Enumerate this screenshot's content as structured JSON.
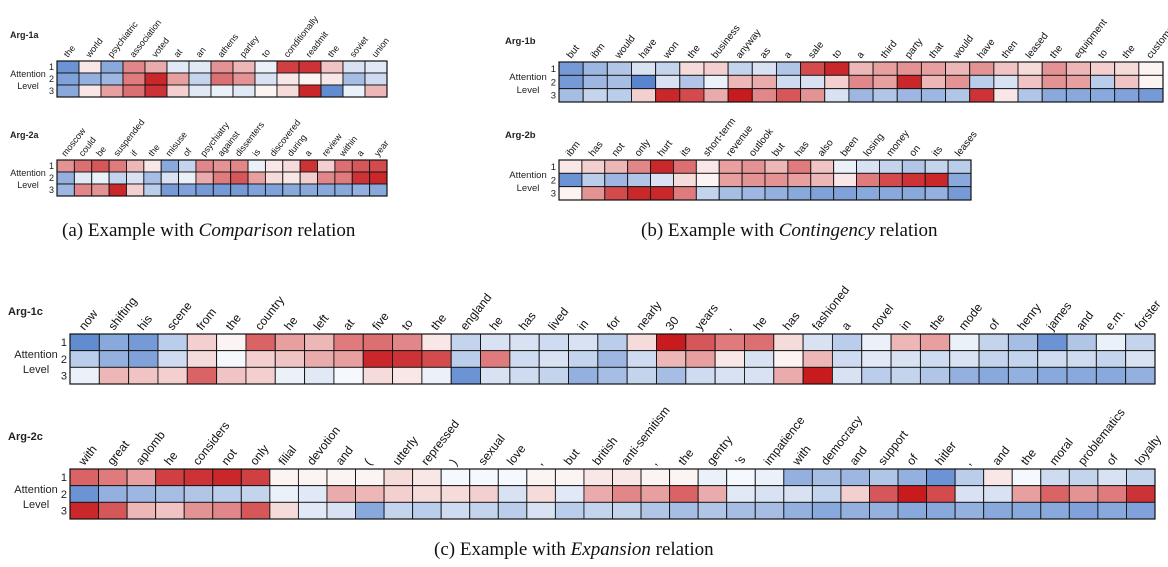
{
  "captions": {
    "a": {
      "prefix": "(a) Example with ",
      "relation": "Comparison",
      "suffix": " relation"
    },
    "b": {
      "prefix": "(b) Example with ",
      "relation": "Contingency",
      "suffix": " relation"
    },
    "c": {
      "prefix": "(c) Example with ",
      "relation": "Expansion",
      "suffix": " relation"
    }
  },
  "axis": {
    "title_line1": "Attention",
    "title_line2": "Level",
    "levels": [
      "1",
      "2",
      "3"
    ]
  },
  "colors": {
    "negative": "#3b6fc4",
    "neutral": "#ffffff",
    "positive": "#c40f12"
  },
  "chart_data": [
    {
      "type": "heatmap",
      "label": "Arg-1a",
      "words": [
        "the",
        "world",
        "psychiatric",
        "association",
        "voted",
        "at",
        "an",
        "athens",
        "parley",
        "to",
        "conditionally",
        "readmit",
        "the",
        "soviet",
        "union"
      ],
      "values": [
        [
          -0.75,
          0.1,
          -0.6,
          0.5,
          0.35,
          -0.15,
          -0.15,
          0.45,
          0.3,
          -0.1,
          0.8,
          0.85,
          0.25,
          -0.2,
          -0.15
        ],
        [
          -0.65,
          -0.55,
          -0.5,
          0.55,
          0.9,
          0.4,
          -0.3,
          0.6,
          0.45,
          -0.2,
          0.1,
          0.05,
          0.1,
          -0.45,
          -0.25
        ],
        [
          -0.6,
          0.1,
          0.4,
          0.6,
          0.85,
          0.2,
          -0.15,
          -0.1,
          -0.15,
          0.05,
          0.15,
          0.9,
          -0.8,
          -0.1,
          0.3
        ]
      ]
    },
    {
      "type": "heatmap",
      "label": "Arg-2a",
      "words": [
        "moscow",
        "could",
        "be",
        "suspended",
        "if",
        "the",
        "misuse",
        "of",
        "psychiatry",
        "against",
        "dissenters",
        "is",
        "discovered",
        "during",
        "a",
        "review",
        "within",
        "a",
        "year"
      ],
      "values": [
        [
          0.45,
          0.6,
          0.7,
          0.55,
          0.3,
          0.1,
          -0.6,
          -0.3,
          0.5,
          0.45,
          0.5,
          -0.1,
          0.1,
          0.15,
          0.85,
          0.2,
          0.6,
          0.7,
          0.75
        ],
        [
          -0.55,
          -0.15,
          -0.1,
          -0.3,
          -0.2,
          -0.45,
          -0.2,
          -0.1,
          0.35,
          0.55,
          0.7,
          0.4,
          0.15,
          0.1,
          0.2,
          0.5,
          0.55,
          0.85,
          0.9
        ],
        [
          -0.5,
          0.5,
          0.45,
          0.9,
          0.2,
          -0.35,
          -0.7,
          -0.65,
          -0.7,
          -0.7,
          -0.7,
          -0.65,
          -0.65,
          -0.6,
          -0.6,
          -0.6,
          -0.6,
          -0.55,
          -0.6
        ]
      ]
    },
    {
      "type": "heatmap",
      "label": "Arg-1b",
      "words": [
        "but",
        "ibm",
        "would",
        "have",
        "won",
        "the",
        "business",
        "anyway",
        "as",
        "a",
        "sale",
        "to",
        "a",
        "third",
        "party",
        "that",
        "would",
        "have",
        "then",
        "leased",
        "the",
        "equipment",
        "to",
        "the",
        "customer"
      ],
      "values": [
        [
          -0.7,
          -0.5,
          -0.4,
          -0.2,
          -0.3,
          0.15,
          0.2,
          -0.3,
          -0.2,
          -0.4,
          0.75,
          0.9,
          0.3,
          0.4,
          0.45,
          0.4,
          0.3,
          0.45,
          0.25,
          0.15,
          0.45,
          0.3,
          0.2,
          0.15,
          0.05
        ],
        [
          -0.7,
          -0.5,
          -0.45,
          -0.85,
          -0.2,
          -0.4,
          -0.1,
          0.3,
          0.35,
          -0.25,
          -0.2,
          0.2,
          0.5,
          0.4,
          0.9,
          0.3,
          0.45,
          -0.35,
          -0.2,
          0.25,
          0.45,
          0.4,
          -0.35,
          0.25,
          0.05
        ],
        [
          -0.45,
          -0.3,
          -0.35,
          0.2,
          0.9,
          0.75,
          0.35,
          0.95,
          0.5,
          0.7,
          0.45,
          -0.2,
          -0.5,
          -0.4,
          -0.5,
          -0.5,
          -0.4,
          0.85,
          0.1,
          -0.4,
          -0.6,
          -0.6,
          -0.6,
          -0.65,
          -0.7
        ]
      ]
    },
    {
      "type": "heatmap",
      "label": "Arg-2b",
      "words": [
        "ibm",
        "has",
        "not",
        "only",
        "hurt",
        "its",
        "short-term",
        "revenue",
        "outlook",
        "but",
        "has",
        "also",
        "been",
        "losing",
        "money",
        "on",
        "its",
        "leases"
      ],
      "values": [
        [
          0.1,
          0.2,
          0.3,
          0.5,
          0.9,
          0.6,
          0.1,
          0.4,
          0.45,
          0.3,
          0.55,
          0.25,
          -0.1,
          -0.2,
          -0.3,
          -0.4,
          -0.3,
          -0.35
        ],
        [
          -0.75,
          -0.35,
          -0.5,
          -0.4,
          -0.2,
          0.15,
          0.05,
          0.4,
          0.45,
          0.45,
          0.4,
          0.3,
          0.1,
          0.55,
          0.75,
          0.85,
          0.9,
          -0.6
        ],
        [
          0.05,
          0.45,
          0.75,
          0.9,
          0.9,
          0.55,
          -0.3,
          -0.45,
          -0.5,
          -0.55,
          -0.6,
          -0.65,
          -0.65,
          -0.6,
          -0.6,
          -0.6,
          -0.55,
          -0.7
        ]
      ]
    },
    {
      "type": "heatmap",
      "label": "Arg-1c",
      "words": [
        "now",
        "shifting",
        "his",
        "scene",
        "from",
        "the",
        "country",
        "he",
        "left",
        "at",
        "five",
        "to",
        "the",
        "england",
        "he",
        "has",
        "lived",
        "in",
        "for",
        "nearly",
        "30",
        "years",
        ",",
        "he",
        "has",
        "fashioned",
        "a",
        "novel",
        "in",
        "the",
        "mode",
        "of",
        "henry",
        "james",
        "and",
        "e.m.",
        "forster"
      ],
      "values": [
        [
          -0.8,
          -0.6,
          -0.7,
          -0.35,
          0.2,
          0.05,
          0.65,
          0.4,
          0.3,
          0.55,
          0.6,
          0.5,
          0.1,
          -0.3,
          -0.2,
          -0.2,
          -0.25,
          -0.2,
          -0.35,
          0.15,
          0.95,
          0.7,
          0.55,
          0.6,
          0.15,
          -0.2,
          -0.35,
          -0.1,
          0.3,
          0.4,
          -0.1,
          -0.3,
          -0.45,
          -0.75,
          -0.4,
          -0.1,
          -0.3
        ],
        [
          -0.35,
          -0.55,
          -0.65,
          -0.25,
          0.15,
          -0.05,
          0.2,
          0.25,
          0.35,
          0.4,
          0.9,
          0.85,
          0.75,
          -0.35,
          0.55,
          -0.25,
          -0.2,
          -0.3,
          -0.5,
          -0.25,
          0.3,
          0.4,
          0.1,
          -0.2,
          0.05,
          0.3,
          -0.25,
          -0.15,
          -0.2,
          -0.25,
          -0.2,
          -0.3,
          -0.3,
          -0.25,
          -0.25,
          -0.3,
          -0.2
        ],
        [
          -0.1,
          0.3,
          0.25,
          0.2,
          0.65,
          0.25,
          0.2,
          -0.1,
          -0.15,
          -0.05,
          0.15,
          0.1,
          -0.1,
          -0.75,
          -0.2,
          -0.25,
          -0.3,
          -0.55,
          -0.45,
          -0.3,
          -0.45,
          -0.25,
          -0.2,
          -0.2,
          0.35,
          0.95,
          -0.2,
          -0.35,
          -0.3,
          -0.4,
          -0.55,
          -0.6,
          -0.55,
          -0.6,
          -0.6,
          -0.6,
          -0.55
        ]
      ]
    },
    {
      "type": "heatmap",
      "label": "Arg-2c",
      "words": [
        "with",
        "great",
        "aplomb",
        "he",
        "considers",
        "not",
        "only",
        "filial",
        "devotion",
        "and",
        "(",
        "utterly",
        "repressed",
        ")",
        "sexual",
        "love",
        ",",
        "but",
        "british",
        "anti-semitism",
        ",",
        "the",
        "gentry",
        "'s",
        "impatience",
        "with",
        "democracy",
        "and",
        "support",
        "of",
        "hitler",
        ",",
        "and",
        "the",
        "moral",
        "problematics",
        "of",
        "loyalty"
      ],
      "values": [
        [
          0.65,
          0.55,
          0.4,
          0.8,
          0.85,
          0.9,
          0.8,
          0.05,
          0.05,
          0.05,
          0.05,
          0.15,
          0.1,
          -0.05,
          -0.05,
          -0.05,
          0.05,
          0.05,
          0.1,
          0.1,
          0.05,
          0.05,
          -0.1,
          -0.05,
          -0.1,
          -0.55,
          -0.45,
          -0.5,
          -0.4,
          -0.55,
          -0.75,
          -0.35,
          0.1,
          -0.05,
          -0.25,
          -0.3,
          -0.2,
          -0.3
        ],
        [
          -0.75,
          -0.55,
          -0.5,
          -0.45,
          -0.4,
          -0.35,
          -0.3,
          -0.1,
          -0.15,
          0.35,
          0.3,
          0.2,
          0.15,
          0.15,
          0.2,
          -0.2,
          0.15,
          -0.15,
          0.35,
          0.5,
          0.4,
          0.65,
          0.35,
          -0.15,
          -0.2,
          -0.2,
          -0.3,
          0.2,
          0.7,
          0.95,
          0.75,
          -0.2,
          -0.2,
          0.4,
          0.65,
          0.45,
          0.55,
          0.85
        ],
        [
          0.9,
          0.7,
          0.3,
          0.25,
          0.45,
          0.5,
          0.7,
          0.15,
          -0.15,
          -0.2,
          -0.6,
          -0.3,
          -0.35,
          -0.25,
          -0.3,
          -0.35,
          -0.2,
          -0.35,
          -0.3,
          -0.3,
          -0.4,
          -0.45,
          -0.4,
          -0.45,
          -0.45,
          -0.55,
          -0.6,
          -0.55,
          -0.55,
          -0.6,
          -0.6,
          -0.55,
          -0.6,
          -0.6,
          -0.6,
          -0.65,
          -0.6,
          -0.65
        ]
      ]
    }
  ]
}
